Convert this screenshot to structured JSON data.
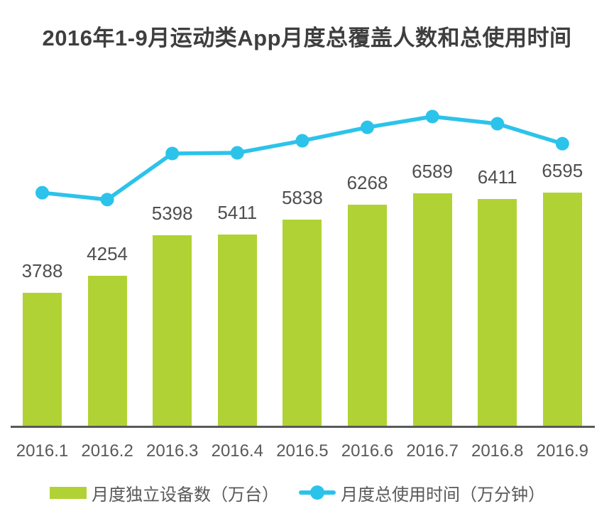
{
  "page": {
    "background": "#ffffff"
  },
  "chart_data": {
    "type": "combo-bar-line",
    "title": "2016年1-9月运动类App月度总覆盖人数和总使用时间",
    "categories": [
      "2016.1",
      "2016.2",
      "2016.3",
      "2016.4",
      "2016.5",
      "2016.6",
      "2016.7",
      "2016.8",
      "2016.9"
    ],
    "series": [
      {
        "name": "月度独立设备数（万台）",
        "type": "bar",
        "color": "#b1d234",
        "unit": "万台",
        "values": [
          3788,
          4254,
          5398,
          5411,
          5838,
          6268,
          6589,
          6411,
          6595
        ],
        "value_labels_shown": true
      },
      {
        "name": "月度总使用时间（万分钟）",
        "type": "line",
        "color": "#2cc3ea",
        "unit": "万分钟",
        "value_labels_shown": false,
        "relative_heights_pct": [
          71.7,
          69.6,
          83.7,
          83.9,
          87.6,
          91.7,
          95.0,
          92.8,
          86.7
        ]
      }
    ],
    "xlabel": "",
    "ylabel": "",
    "grid": false,
    "y_axis_shown": false,
    "x_axis_line_shown": true,
    "legend_position": "bottom"
  },
  "legend": {
    "items": [
      {
        "label": "月度独立设备数（万台）",
        "swatch": "bar-square",
        "color": "#b1d234"
      },
      {
        "label": "月度总使用时间（万分钟）",
        "swatch": "line-dot",
        "color": "#2cc3ea"
      }
    ]
  },
  "colors": {
    "bar_green": "#b1d234",
    "line_cyan": "#2cc3ea",
    "axis_line": "#58595b",
    "title_text": "#3e3e3e",
    "value_label_text": "#4f4f4f",
    "axis_label_text": "#58595b"
  }
}
